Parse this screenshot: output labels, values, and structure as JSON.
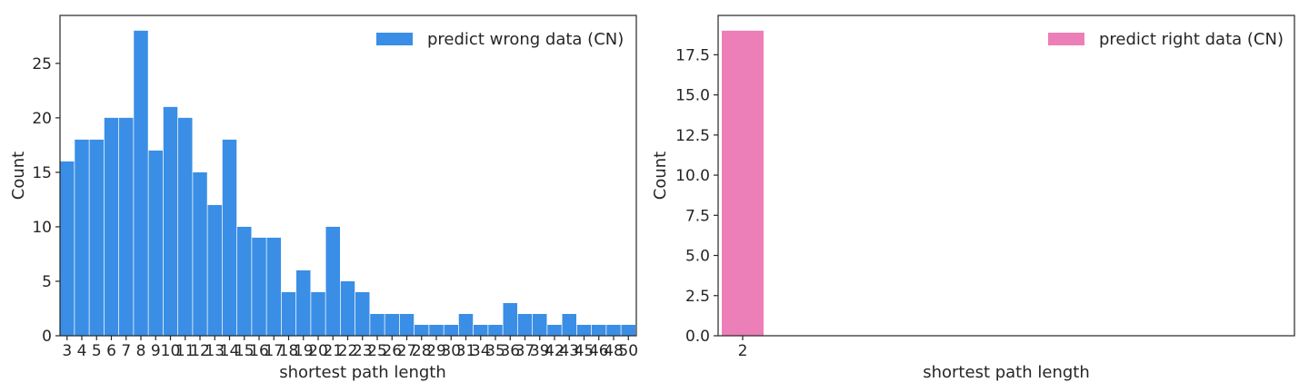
{
  "chart_data": [
    {
      "type": "bar",
      "categories": [
        "3",
        "4",
        "5",
        "6",
        "7",
        "8",
        "9",
        "10",
        "11",
        "12",
        "13",
        "14",
        "15",
        "16",
        "17",
        "18",
        "19",
        "20",
        "21",
        "22",
        "23",
        "25",
        "26",
        "27",
        "28",
        "29",
        "30",
        "31",
        "34",
        "35",
        "36",
        "37",
        "39",
        "42",
        "43",
        "45",
        "46",
        "48",
        "50"
      ],
      "series": [
        {
          "name": "predict wrong data (CN)",
          "values": [
            16,
            18,
            18,
            20,
            20,
            28,
            17,
            21,
            20,
            15,
            12,
            18,
            10,
            9,
            9,
            4,
            6,
            4,
            10,
            5,
            4,
            2,
            2,
            2,
            1,
            1,
            1,
            2,
            1,
            1,
            3,
            2,
            2,
            1,
            2,
            1,
            1,
            1,
            1
          ]
        }
      ],
      "color": "#3a8ee6",
      "xlabel": "shortest path length",
      "ylabel": "Count",
      "ylim": [
        0,
        29.4
      ],
      "yticks": [
        0,
        5,
        10,
        15,
        20,
        25
      ],
      "ytick_labels": [
        "0",
        "5",
        "10",
        "15",
        "20",
        "25"
      ],
      "legend_position": "top-right",
      "grid": false
    },
    {
      "type": "bar",
      "categories": [
        "2"
      ],
      "series": [
        {
          "name": "predict right data (CN)",
          "values": [
            19
          ]
        }
      ],
      "color": "#ec7fb7",
      "xlabel": "shortest path length",
      "ylabel": "Count",
      "ylim": [
        0,
        19.95
      ],
      "yticks": [
        0,
        2.5,
        5,
        7.5,
        10,
        12.5,
        15,
        17.5
      ],
      "ytick_labels": [
        "0.0",
        "2.5",
        "5.0",
        "7.5",
        "10.0",
        "12.5",
        "15.0",
        "17.5"
      ],
      "legend_position": "top-right",
      "grid": false
    }
  ]
}
